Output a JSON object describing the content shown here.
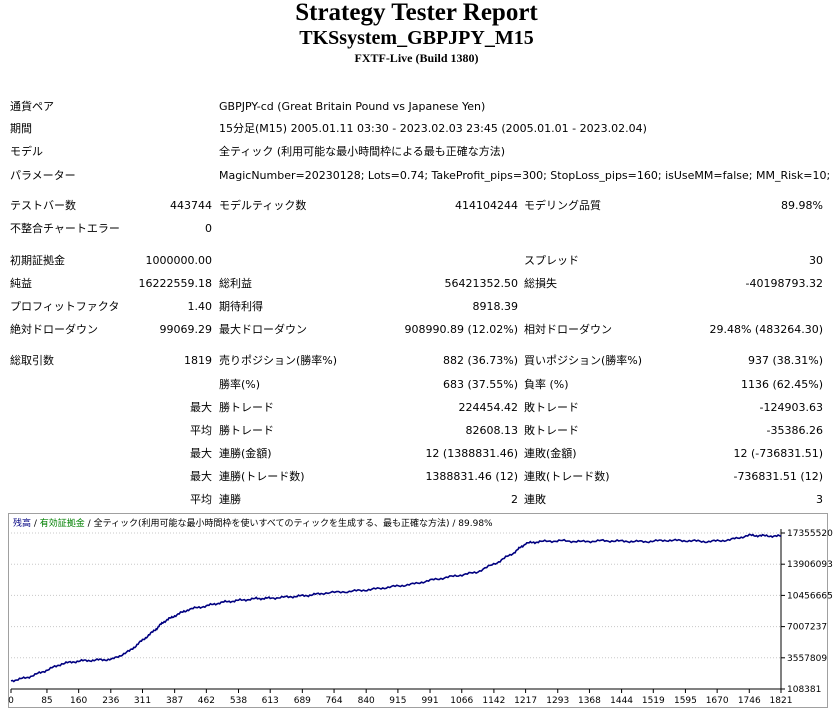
{
  "header": {
    "title": "Strategy Tester Report",
    "subtitle": "TKSsystem_GBPJPY_M15",
    "build": "FXTF-Live (Build 1380)"
  },
  "info": [
    {
      "label": "通貨ペア",
      "value": "GBPJPY-cd (Great Britain Pound vs Japanese Yen)"
    },
    {
      "label": "期間",
      "value": "15分足(M15) 2005.01.11 03:30 - 2023.02.03 23:45 (2005.01.01 - 2023.02.04)"
    },
    {
      "label": "モデル",
      "value": "全ティック (利用可能な最小時間枠による最も正確な方法)"
    },
    {
      "label": "パラメーター",
      "value": "MagicNumber=20230128; Lots=0.74; TakeProfit_pips=300; StopLoss_pips=160; isUseMM=false; MM_Risk=10;"
    }
  ],
  "stats": {
    "bars": {
      "label": "テストバー数",
      "value": "443744"
    },
    "ticks": {
      "label": "モデルティック数",
      "value": "414104244"
    },
    "quality": {
      "label": "モデリング品質",
      "value": "89.98%"
    },
    "mismatch": {
      "label": "不整合チャートエラー",
      "value": "0"
    },
    "deposit": {
      "label": "初期証拠金",
      "value": "1000000.00"
    },
    "spread": {
      "label": "スプレッド",
      "value": "30"
    },
    "net_profit": {
      "label": "純益",
      "value": "16222559.18"
    },
    "gross_profit": {
      "label": "総利益",
      "value": "56421352.50"
    },
    "gross_loss": {
      "label": "総損失",
      "value": "-40198793.32"
    },
    "profit_factor": {
      "label": "プロフィットファクタ",
      "value": "1.40"
    },
    "expected_payoff": {
      "label": "期待利得",
      "value": "8918.39"
    },
    "abs_drawdown": {
      "label": "絶対ドローダウン",
      "value": "99069.29"
    },
    "max_drawdown": {
      "label": "最大ドローダウン",
      "value": "908990.89 (12.02%)"
    },
    "rel_drawdown": {
      "label": "相対ドローダウン",
      "value": "29.48% (483264.30)"
    },
    "total_trades": {
      "label": "総取引数",
      "value": "1819"
    },
    "short_positions": {
      "label": "売りポジション(勝率%)",
      "value": "882 (36.73%)"
    },
    "long_positions": {
      "label": "買いポジション(勝率%)",
      "value": "937 (38.31%)"
    },
    "profit_trades": {
      "label": "勝率(%)",
      "value": "683 (37.55%)"
    },
    "loss_trades": {
      "label": "負率 (%)",
      "value": "1136 (62.45%)"
    },
    "largest_profit": {
      "prefix": "最大",
      "label": "勝トレード",
      "value": "224454.42"
    },
    "largest_loss": {
      "label": "敗トレード",
      "value": "-124903.63"
    },
    "avg_profit": {
      "prefix": "平均",
      "label": "勝トレード",
      "value": "82608.13"
    },
    "avg_loss": {
      "label": "敗トレード",
      "value": "-35386.26"
    },
    "max_cons_wins_money": {
      "prefix": "最大",
      "label": "連勝(金額)",
      "value": "12 (1388831.46)"
    },
    "max_cons_losses_money": {
      "label": "連敗(金額)",
      "value": "12 (-736831.51)"
    },
    "max_cons_profit_count": {
      "prefix": "最大",
      "label": "連勝(トレード数)",
      "value": "1388831.46 (12)"
    },
    "max_cons_loss_count": {
      "label": "連敗(トレード数)",
      "value": "-736831.51 (12)"
    },
    "avg_cons_wins": {
      "prefix": "平均",
      "label": "連勝",
      "value": "2"
    },
    "avg_cons_losses": {
      "label": "連敗",
      "value": "3"
    }
  },
  "chart_data": {
    "type": "line",
    "legend": {
      "balance": "残高",
      "equity": "有効証拠金",
      "model": "全ティック(利用可能な最小時間枠を使いすべてのティックを生成する、最も正確な方法)",
      "quality": "89.98%",
      "separator": " / "
    },
    "colors": {
      "balance": "#000080",
      "equity": "#008000",
      "axis": "#000000",
      "grid": "#c8c8c8"
    },
    "x_ticks": [
      0,
      85,
      160,
      236,
      311,
      387,
      462,
      538,
      613,
      689,
      764,
      840,
      915,
      991,
      1066,
      1142,
      1217,
      1293,
      1368,
      1444,
      1519,
      1595,
      1670,
      1746,
      1821
    ],
    "y_ticks": [
      108381,
      3557809,
      7007237,
      10456665,
      13906093,
      17355520
    ],
    "xlim": [
      0,
      1821
    ],
    "ylim": [
      108381,
      17355520
    ],
    "series": [
      {
        "values_x": [
          0,
          40,
          80,
          120,
          160,
          200,
          240,
          280,
          311,
          340,
          360,
          387,
          420,
          462,
          500,
          538,
          580,
          613,
          660,
          700,
          740,
          800,
          850,
          900,
          950,
          1000,
          1050,
          1100,
          1150,
          1190,
          1217,
          1250,
          1300,
          1350,
          1400,
          1450,
          1500,
          1550,
          1600,
          1650,
          1700,
          1746,
          1780,
          1821
        ],
        "values_y": [
          1000000,
          1400000,
          2100000,
          2900000,
          3200000,
          3300000,
          3400000,
          4300000,
          5500000,
          6600000,
          7500000,
          8200000,
          8900000,
          9300000,
          9700000,
          9900000,
          10100000,
          10150000,
          10300000,
          10450000,
          10700000,
          10900000,
          11100000,
          11400000,
          11700000,
          12200000,
          12600000,
          13000000,
          14100000,
          15200000,
          16200000,
          16400000,
          16500000,
          16400000,
          16500000,
          16450000,
          16400000,
          16550000,
          16500000,
          16400000,
          16600000,
          17100000,
          17050000,
          17000000
        ]
      }
    ]
  }
}
